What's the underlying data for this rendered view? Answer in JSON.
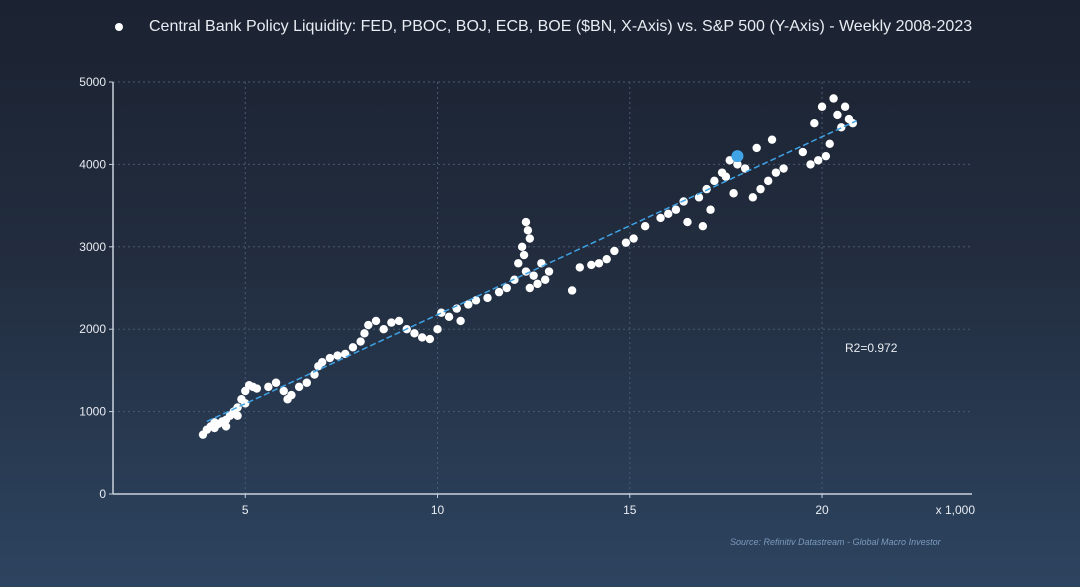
{
  "chart_data": {
    "type": "scatter",
    "title": "Central Bank Policy Liquidity: FED, PBOC, BOJ, ECB, BOE ($BN, X-Axis) vs. S&P 500 (Y-Axis) - Weekly 2008-2023",
    "legend": {
      "placement": "top",
      "entries": [
        "Central Bank Policy Liquidity: FED, PBOC, BOJ, ECB, BOE ($BN, X-Axis) vs. S&P 500 (Y-Axis) - Weekly 2008-2023"
      ]
    },
    "xlabel": "x 1,000",
    "ylabel": "",
    "xlim": [
      1.56,
      23.9
    ],
    "ylim": [
      0,
      5000
    ],
    "xticks": [
      "5",
      "10",
      "15",
      "20"
    ],
    "xtick_values": [
      5,
      10,
      15,
      20
    ],
    "yticks": [
      "0",
      "1000",
      "2000",
      "3000",
      "4000",
      "5000"
    ],
    "ytick_values": [
      0,
      1000,
      2000,
      3000,
      4000,
      5000
    ],
    "grid": true,
    "points": [
      [
        3.9,
        720
      ],
      [
        4.0,
        780
      ],
      [
        4.1,
        820
      ],
      [
        4.2,
        800
      ],
      [
        4.3,
        850
      ],
      [
        4.4,
        880
      ],
      [
        4.5,
        900
      ],
      [
        4.6,
        950
      ],
      [
        4.7,
        1000
      ],
      [
        4.8,
        1050
      ],
      [
        4.9,
        1150
      ],
      [
        5.0,
        1250
      ],
      [
        5.1,
        1320
      ],
      [
        5.2,
        1300
      ],
      [
        5.3,
        1280
      ],
      [
        5.0,
        1100
      ],
      [
        4.8,
        950
      ],
      [
        4.5,
        820
      ],
      [
        4.2,
        870
      ],
      [
        5.6,
        1300
      ],
      [
        5.8,
        1350
      ],
      [
        6.0,
        1250
      ],
      [
        6.1,
        1150
      ],
      [
        6.2,
        1200
      ],
      [
        6.4,
        1300
      ],
      [
        6.6,
        1350
      ],
      [
        6.8,
        1450
      ],
      [
        6.9,
        1550
      ],
      [
        7.0,
        1600
      ],
      [
        7.2,
        1650
      ],
      [
        7.4,
        1680
      ],
      [
        7.6,
        1700
      ],
      [
        7.8,
        1780
      ],
      [
        8.0,
        1850
      ],
      [
        8.1,
        1950
      ],
      [
        8.2,
        2050
      ],
      [
        8.4,
        2100
      ],
      [
        8.6,
        2000
      ],
      [
        8.8,
        2080
      ],
      [
        9.0,
        2100
      ],
      [
        9.2,
        2000
      ],
      [
        9.4,
        1950
      ],
      [
        9.6,
        1900
      ],
      [
        9.8,
        1880
      ],
      [
        10.0,
        2000
      ],
      [
        10.1,
        2200
      ],
      [
        10.3,
        2150
      ],
      [
        10.5,
        2250
      ],
      [
        10.6,
        2100
      ],
      [
        10.8,
        2300
      ],
      [
        11.0,
        2350
      ],
      [
        11.3,
        2380
      ],
      [
        11.6,
        2450
      ],
      [
        11.8,
        2500
      ],
      [
        12.0,
        2600
      ],
      [
        12.1,
        2800
      ],
      [
        12.2,
        3000
      ],
      [
        12.3,
        3300
      ],
      [
        12.35,
        3200
      ],
      [
        12.4,
        3100
      ],
      [
        12.25,
        2900
      ],
      [
        12.3,
        2700
      ],
      [
        12.5,
        2650
      ],
      [
        12.6,
        2550
      ],
      [
        12.8,
        2600
      ],
      [
        12.9,
        2700
      ],
      [
        12.7,
        2800
      ],
      [
        12.4,
        2500
      ],
      [
        13.5,
        2470
      ],
      [
        13.7,
        2750
      ],
      [
        14.0,
        2780
      ],
      [
        14.2,
        2800
      ],
      [
        14.4,
        2850
      ],
      [
        14.6,
        2950
      ],
      [
        14.9,
        3050
      ],
      [
        15.1,
        3100
      ],
      [
        15.4,
        3250
      ],
      [
        15.8,
        3350
      ],
      [
        16.0,
        3400
      ],
      [
        16.2,
        3450
      ],
      [
        16.4,
        3550
      ],
      [
        16.5,
        3300
      ],
      [
        16.8,
        3600
      ],
      [
        17.0,
        3700
      ],
      [
        17.2,
        3800
      ],
      [
        17.4,
        3900
      ],
      [
        17.5,
        3850
      ],
      [
        17.6,
        4050
      ],
      [
        17.8,
        4000
      ],
      [
        18.0,
        3950
      ],
      [
        17.7,
        3650
      ],
      [
        18.2,
        3600
      ],
      [
        18.4,
        3700
      ],
      [
        18.6,
        3800
      ],
      [
        18.8,
        3900
      ],
      [
        19.0,
        3950
      ],
      [
        18.7,
        4300
      ],
      [
        19.5,
        4150
      ],
      [
        19.8,
        4500
      ],
      [
        19.9,
        4050
      ],
      [
        20.0,
        4700
      ],
      [
        20.1,
        4100
      ],
      [
        20.2,
        4250
      ],
      [
        20.3,
        4800
      ],
      [
        20.4,
        4600
      ],
      [
        20.5,
        4450
      ],
      [
        20.6,
        4700
      ],
      [
        20.7,
        4550
      ],
      [
        20.8,
        4500
      ],
      [
        19.7,
        4000
      ],
      [
        18.3,
        4200
      ],
      [
        16.9,
        3250
      ],
      [
        17.1,
        3450
      ]
    ],
    "highlight_point": [
      17.8,
      4100
    ],
    "trendline": {
      "from": [
        4.0,
        880
      ],
      "to": [
        20.9,
        4530
      ]
    },
    "annotation": "R2=0.972",
    "source": "Source: Refinitiv Datastream - Global Macro Investor",
    "colors": {
      "points": "#ffffff",
      "highlight": "#3fa3e6",
      "trendline": "#3fa3e6",
      "grid": "#4a5a72",
      "axis": "#c9d1dc"
    }
  }
}
